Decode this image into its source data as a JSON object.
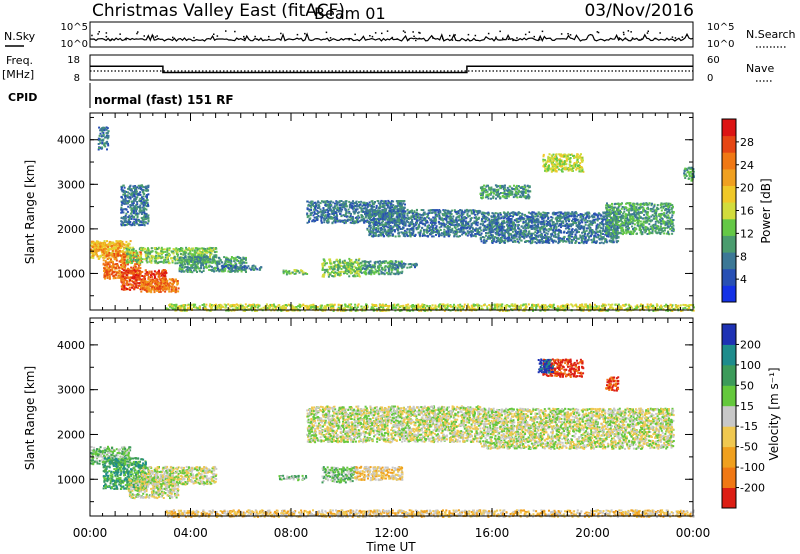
{
  "header": {
    "title": "Christmas Valley East (fitACF)",
    "beam": "Beam 01",
    "date": "03/Nov/2016"
  },
  "sky_panel": {
    "left_label": "N.Sky",
    "right_label": "N.Search",
    "left_ticks": [
      "10^5",
      "10^0"
    ],
    "right_ticks": [
      "10^5",
      "10^0"
    ]
  },
  "freq_panel": {
    "left_label_1": "Freq.",
    "left_label_2": "[MHz]",
    "right_label": "Nave",
    "left_ticks": [
      "18",
      "8"
    ],
    "right_ticks": [
      "60",
      "0"
    ],
    "freq_profile_x_hours": [
      0,
      2.9,
      2.9,
      15.0,
      15.0,
      24
    ],
    "freq_profile_y_mhz": [
      13.5,
      13.5,
      11.0,
      11.0,
      13.5,
      13.5
    ]
  },
  "cpid": {
    "label": "CPID",
    "text": "normal (fast) 151 RF"
  },
  "chart_data": [
    {
      "type": "heatmap",
      "name": "power",
      "ylabel": "Slant Range [km]",
      "xlabel": "Time UT",
      "x_ticks": [
        "00:00",
        "04:00",
        "08:00",
        "12:00",
        "16:00",
        "20:00",
        "00:00"
      ],
      "y_ticks": [
        "1000",
        "2000",
        "3000",
        "4000"
      ],
      "xlim_hours": [
        0,
        24
      ],
      "ylim_km": [
        180,
        4600
      ],
      "colorbar": {
        "label": "Power [dB]",
        "ticks": [
          "4",
          "8",
          "12",
          "16",
          "20",
          "24",
          "28"
        ],
        "colors": [
          "#1432e6",
          "#2850b4",
          "#3c7896",
          "#4a9c6e",
          "#64c846",
          "#d2dc3c",
          "#f0c828",
          "#f0a020",
          "#f07814",
          "#e64614",
          "#dc1414"
        ]
      },
      "regions": [
        {
          "t0": 0.0,
          "t1": 1.6,
          "r0": 1350,
          "r1": 1750,
          "level": 6
        },
        {
          "t0": 0.5,
          "t1": 2.0,
          "r0": 900,
          "r1": 1500,
          "level": 8
        },
        {
          "t0": 1.2,
          "t1": 3.0,
          "r0": 650,
          "r1": 1100,
          "level": 9
        },
        {
          "t0": 2.0,
          "t1": 3.5,
          "r0": 600,
          "r1": 900,
          "level": 8
        },
        {
          "t0": 0.0,
          "t1": 1.2,
          "r0": 1500,
          "r1": 1700,
          "level": 7
        },
        {
          "t0": 1.4,
          "t1": 5.0,
          "r0": 1250,
          "r1": 1600,
          "level": 4
        },
        {
          "t0": 3.5,
          "t1": 6.2,
          "r0": 1050,
          "r1": 1400,
          "level": 3
        },
        {
          "t0": 5.0,
          "t1": 6.8,
          "r0": 1100,
          "r1": 1200,
          "level": 2
        },
        {
          "t0": 7.6,
          "t1": 8.6,
          "r0": 1000,
          "r1": 1100,
          "level": 4
        },
        {
          "t0": 9.2,
          "t1": 10.7,
          "r0": 950,
          "r1": 1350,
          "level": 4
        },
        {
          "t0": 10.7,
          "t1": 12.4,
          "r0": 1000,
          "r1": 1300,
          "level": 3
        },
        {
          "t0": 12.0,
          "t1": 13.0,
          "r0": 1150,
          "r1": 1250,
          "level": 2
        },
        {
          "t0": 8.6,
          "t1": 12.5,
          "r0": 2150,
          "r1": 2650,
          "level": 2
        },
        {
          "t0": 11.0,
          "t1": 15.5,
          "r0": 1850,
          "r1": 2450,
          "level": 2
        },
        {
          "t0": 15.5,
          "t1": 21.0,
          "r0": 1700,
          "r1": 2400,
          "level": 2
        },
        {
          "t0": 20.5,
          "t1": 23.2,
          "r0": 1900,
          "r1": 2600,
          "level": 3
        },
        {
          "t0": 18.0,
          "t1": 19.6,
          "r0": 3300,
          "r1": 3700,
          "level": 5
        },
        {
          "t0": 15.5,
          "t1": 17.5,
          "r0": 2700,
          "r1": 3000,
          "level": 3
        },
        {
          "t0": 1.2,
          "t1": 2.3,
          "r0": 2100,
          "r1": 3000,
          "level": 2
        },
        {
          "t0": 0.3,
          "t1": 0.7,
          "r0": 3800,
          "r1": 4300,
          "level": 2
        },
        {
          "t0": 23.6,
          "t1": 24.0,
          "r0": 3100,
          "r1": 3400,
          "level": 3
        },
        {
          "t0": 3.0,
          "t1": 24.0,
          "r0": 180,
          "r1": 330,
          "level": 5
        }
      ]
    },
    {
      "type": "heatmap",
      "name": "velocity",
      "ylabel": "Slant Range [km]",
      "xlabel": "Time UT",
      "x_ticks": [
        "00:00",
        "04:00",
        "08:00",
        "12:00",
        "16:00",
        "20:00",
        "00:00"
      ],
      "y_ticks": [
        "1000",
        "2000",
        "3000",
        "4000"
      ],
      "xlim_hours": [
        0,
        24
      ],
      "ylim_km": [
        180,
        4600
      ],
      "colorbar": {
        "label": "Velocity [m s⁻¹]",
        "ticks": [
          "200",
          "100",
          "50",
          "15",
          "-15",
          "-50",
          "-100",
          "-200"
        ],
        "colors": [
          "#1e32b4",
          "#1e8c8c",
          "#3c9b5a",
          "#64c83c",
          "#c8c8c8",
          "#f0c850",
          "#f0a01e",
          "#f07814",
          "#dc1e14"
        ]
      },
      "regions": [
        {
          "t0": 0.0,
          "t1": 1.6,
          "r0": 1350,
          "r1": 1750,
          "level": 3
        },
        {
          "t0": 0.5,
          "t1": 2.2,
          "r0": 800,
          "r1": 1500,
          "level": 2
        },
        {
          "t0": 1.5,
          "t1": 3.5,
          "r0": 600,
          "r1": 1100,
          "level": 4
        },
        {
          "t0": 2.0,
          "t1": 5.0,
          "r0": 900,
          "r1": 1300,
          "level": 4
        },
        {
          "t0": 7.5,
          "t1": 8.6,
          "r0": 1000,
          "r1": 1100,
          "level": 3
        },
        {
          "t0": 9.2,
          "t1": 10.5,
          "r0": 950,
          "r1": 1300,
          "level": 3
        },
        {
          "t0": 10.5,
          "t1": 12.4,
          "r0": 1000,
          "r1": 1300,
          "level": 5
        },
        {
          "t0": 8.6,
          "t1": 15.5,
          "r0": 1850,
          "r1": 2650,
          "level": 4
        },
        {
          "t0": 15.5,
          "t1": 23.2,
          "r0": 1700,
          "r1": 2600,
          "level": 4
        },
        {
          "t0": 18.0,
          "t1": 19.6,
          "r0": 3300,
          "r1": 3700,
          "level": 8
        },
        {
          "t0": 17.8,
          "t1": 18.4,
          "r0": 3400,
          "r1": 3700,
          "level": 0
        },
        {
          "t0": 20.5,
          "t1": 21.0,
          "r0": 3000,
          "r1": 3300,
          "level": 8
        },
        {
          "t0": 3.0,
          "t1": 24.0,
          "r0": 180,
          "r1": 330,
          "level": 5
        }
      ]
    }
  ]
}
